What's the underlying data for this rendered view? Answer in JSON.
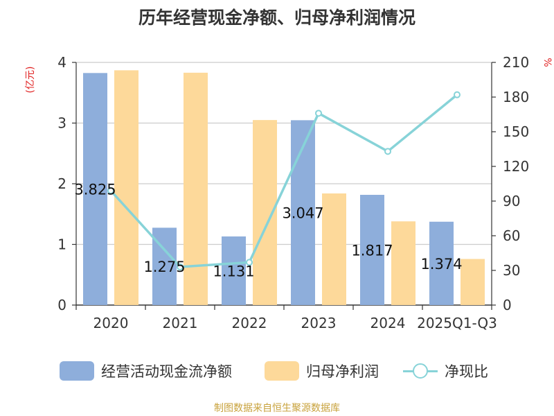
{
  "title": "历年经营现金净额、归母净利润情况",
  "source": "制图数据来自恒生聚源数据库",
  "legend": {
    "cash_flow": "经营活动现金流净额",
    "net_profit": "归母净利润",
    "ratio": "净现比"
  },
  "colors": {
    "cash_flow": "#8eaedb",
    "net_profit": "#fdd99a",
    "ratio": "#87d3d8",
    "axis_unit": "#e02020"
  },
  "chart_data": {
    "type": "bar",
    "categories": [
      "2020",
      "2021",
      "2022",
      "2023",
      "2024",
      "2025Q1-Q3"
    ],
    "y_left_unit": "(亿元)",
    "y_right_unit": "%",
    "ylim_left": [
      0,
      4
    ],
    "yticks_left": [
      "0",
      "1",
      "2",
      "3",
      "4"
    ],
    "ylim_right": [
      0,
      210
    ],
    "yticks_right": [
      "0",
      "30",
      "60",
      "90",
      "120",
      "150",
      "180",
      "210"
    ],
    "grid": true,
    "legend_position": "bottom",
    "series": [
      {
        "name": "经营活动现金流净额",
        "type": "bar",
        "axis": "left",
        "values": [
          3.825,
          1.275,
          1.131,
          3.047,
          1.817,
          1.374
        ],
        "labels": [
          "3.825",
          "1.275",
          "1.131",
          "3.047",
          "1.817",
          "1.374"
        ]
      },
      {
        "name": "归母净利润",
        "type": "bar",
        "axis": "left",
        "values": [
          3.87,
          3.83,
          3.05,
          1.84,
          1.38,
          0.76
        ]
      },
      {
        "name": "净现比",
        "type": "line",
        "axis": "right",
        "values": [
          99,
          33,
          37,
          166,
          133,
          182
        ]
      }
    ]
  }
}
